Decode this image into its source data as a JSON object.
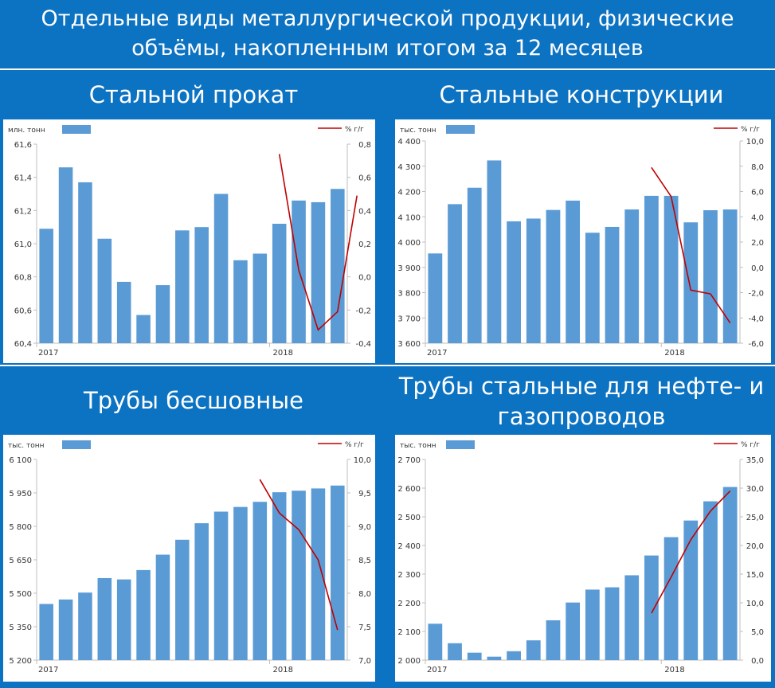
{
  "page_title": "Отдельные виды металлургической продукции, физические объёмы, накопленным итогом за 12 месяцев",
  "sections": [
    "Стальной прокат",
    "Стальные конструкции",
    "Трубы бесшовные",
    "Трубы стальные для нефте- и газопроводов"
  ],
  "colors": {
    "background": "#0c72c2",
    "bar": "#5b9bd5",
    "line": "#c00000",
    "panel": "#ffffff"
  },
  "chart_data": [
    {
      "type": "bar",
      "title": "Стальной прокат",
      "left_unit": "млн. тонн",
      "right_unit": "% г/г",
      "year_labels": [
        {
          "text": "2017",
          "at": 0
        },
        {
          "text": "2018",
          "at": 12
        }
      ],
      "ylim": [
        60.4,
        61.6
      ],
      "yticks": [
        "61,6",
        "61,4",
        "61,2",
        "61,0",
        "60,8",
        "60,6",
        "60,4"
      ],
      "y2lim": [
        -0.4,
        0.8
      ],
      "y2ticks": [
        "0,8",
        "0,6",
        "0,4",
        "0,2",
        "0,0",
        "-0,2",
        "-0,4"
      ],
      "series": [
        {
          "values": [
            61.09,
            61.46,
            61.37,
            61.03,
            60.77,
            60.57,
            60.75,
            61.08,
            61.1,
            61.3,
            60.9,
            60.94,
            61.12,
            61.26,
            61.25,
            61.33
          ]
        },
        {
          "axis": "right",
          "start": 12,
          "values": [
            0.74,
            0.04,
            -0.32,
            -0.21,
            0.49
          ]
        }
      ]
    },
    {
      "type": "bar",
      "title": "Стальные конструкции",
      "left_unit": "тыс. тонн",
      "right_unit": "% г/г",
      "year_labels": [
        {
          "text": "2017",
          "at": 0
        },
        {
          "text": "2018",
          "at": 12
        }
      ],
      "ylim": [
        3600,
        4400
      ],
      "yticks": [
        "4 400",
        "4 300",
        "4 200",
        "4 100",
        "4 000",
        "3 900",
        "3 800",
        "3 700",
        "3 600"
      ],
      "y2lim": [
        -6,
        10
      ],
      "y2ticks": [
        "10,0",
        "8,0",
        "6,0",
        "4,0",
        "2,0",
        "0,0",
        "-2,0",
        "-4,0",
        "-6,0"
      ],
      "series": [
        {
          "values": [
            3955,
            4150,
            4215,
            4323,
            4082,
            4093,
            4127,
            4164,
            4037,
            4060,
            4129,
            4183,
            4183,
            4078,
            4126,
            4129
          ]
        },
        {
          "axis": "right",
          "start": 11,
          "values": [
            7.9,
            5.6,
            -1.8,
            -2.1,
            -4.4
          ]
        }
      ]
    },
    {
      "type": "bar",
      "title": "Трубы бесшовные",
      "left_unit": "тыс. тонн",
      "right_unit": "% г/г",
      "year_labels": [
        {
          "text": "2017",
          "at": 0
        },
        {
          "text": "2018",
          "at": 12
        }
      ],
      "ylim": [
        5200,
        6100
      ],
      "yticks": [
        "6 100",
        "5 950",
        "5 800",
        "5 650",
        "5 500",
        "5 350",
        "5 200"
      ],
      "y2lim": [
        7,
        10
      ],
      "y2ticks": [
        "10,0",
        "9,5",
        "9,0",
        "8,5",
        "8,0",
        "7,5",
        "7,0"
      ],
      "series": [
        {
          "values": [
            5452,
            5472,
            5503,
            5568,
            5562,
            5604,
            5673,
            5740,
            5814,
            5866,
            5887,
            5910,
            5953,
            5960,
            5970,
            5983
          ]
        },
        {
          "axis": "right",
          "start": 11,
          "values": [
            9.7,
            9.2,
            8.95,
            8.5,
            7.45
          ]
        }
      ]
    },
    {
      "type": "bar",
      "title": "Трубы стальные для нефте- и газопроводов",
      "left_unit": "тыс. тонн",
      "right_unit": "% г/г",
      "year_labels": [
        {
          "text": "2017",
          "at": 0
        },
        {
          "text": "2018",
          "at": 12
        }
      ],
      "ylim": [
        2000,
        2700
      ],
      "yticks": [
        "2 700",
        "2 600",
        "2 500",
        "2 400",
        "2 300",
        "2 200",
        "2 100",
        "2 000"
      ],
      "y2lim": [
        0,
        35
      ],
      "y2ticks": [
        "35,0",
        "30,0",
        "25,0",
        "20,0",
        "15,0",
        "10,0",
        "5,0",
        "0,0"
      ],
      "series": [
        {
          "values": [
            2127,
            2059,
            2026,
            2012,
            2031,
            2069,
            2139,
            2201,
            2246,
            2254,
            2296,
            2365,
            2429,
            2487,
            2554,
            2604
          ]
        },
        {
          "axis": "right",
          "start": 11,
          "values": [
            8.2,
            14.5,
            21.0,
            26.0,
            29.5
          ]
        }
      ]
    }
  ]
}
